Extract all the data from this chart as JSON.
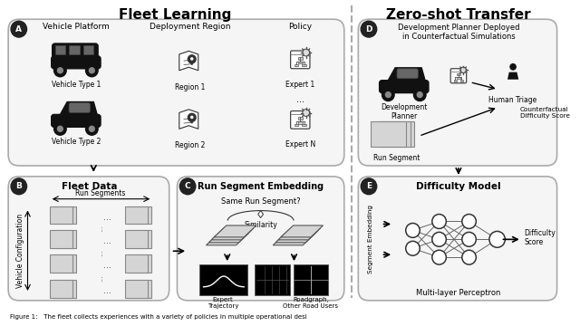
{
  "title_left": "Fleet Learning",
  "title_right": "Zero-shot Transfer",
  "bg_color": "#ffffff",
  "panel_bg": "#f7f7f7",
  "dark_circle_color": "#222222",
  "caption_text": "Figure 1:   The fleet collects experiences with a variety of policies in multiple operational desi",
  "panel_A_label": "A",
  "panel_B_label": "B",
  "panel_C_label": "C",
  "panel_D_label": "D",
  "panel_E_label": "E",
  "panel_B_title": "Fleet Data",
  "panel_C_title": "Run Segment Embedding",
  "panel_E_title": "Difficulty Model",
  "col1_label": "Vehicle Platform",
  "col2_label": "Deployment Region",
  "col3_label": "Policy",
  "vt1_label": "Vehicle Type 1",
  "vt2_label": "Vehicle Type 2",
  "r1_label": "Region 1",
  "r2_label": "Region 2",
  "e1_label": "Expert 1",
  "eN_label": "Expert N",
  "run_seg_label": "Run Segments",
  "veh_config_label": "Vehicle Configuration",
  "same_run_label": "Same Run Segment?",
  "similarity_label": "Similarity",
  "expert_traj_label": "Expert\nTrajectory",
  "roadgraph_label": "Roadgraph,\nOther Road Users",
  "dev_planner_label": "Development\nPlanner",
  "human_triage_label": "Human Triage",
  "counterfactual_label": "Counterfactual\nDifficulty Score",
  "run_segment_d_label": "Run Segment",
  "seg_embedding_label": "Segment Embedding",
  "mlp_label": "Multi-layer Perceptron",
  "difficulty_score_label": "Difficulty\nScore",
  "dev_planner_deployed_1": "Development Planner Deployed",
  "dev_planner_deployed_2": "in Counterfactual Simulations"
}
